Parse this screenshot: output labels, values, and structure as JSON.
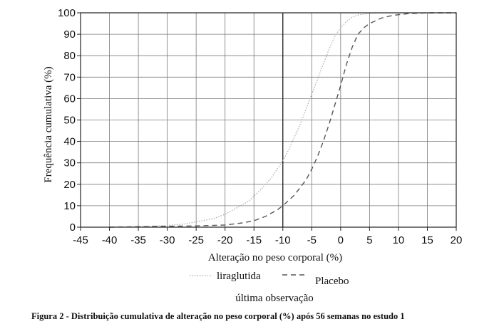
{
  "caption": "Figura 2 - Distribuição cumulativa de alteração no peso corporal (%) após 56 semanas no estudo 1",
  "chart_data": {
    "type": "line",
    "title": "",
    "xlabel": "Alteração no peso corporal (%)",
    "ylabel": "Frequência cumulativa (%)",
    "xlim": [
      -45,
      20
    ],
    "ylim": [
      0,
      100
    ],
    "x_ticks": [
      -45,
      -40,
      -35,
      -30,
      -25,
      -20,
      -15,
      -10,
      -5,
      0,
      5,
      10,
      15,
      20
    ],
    "y_ticks": [
      0,
      10,
      20,
      30,
      40,
      50,
      60,
      70,
      80,
      90,
      100
    ],
    "x_tick_labels": [
      "-45",
      "-40",
      "-35",
      "-30",
      "-25",
      "-20",
      "-15",
      "-10",
      "-5",
      "0",
      "5",
      "10",
      "15",
      "20"
    ],
    "y_tick_labels": [
      "0",
      "10",
      "20",
      "30",
      "40",
      "50",
      "60",
      "70",
      "80",
      "90",
      "100"
    ],
    "grid": true,
    "reference_line_x": -10,
    "legend_placement": "below",
    "legend_title": "última observação",
    "series": [
      {
        "name": "liraglutida",
        "style": "dotted",
        "color": "#a8a8a8",
        "x": [
          -40,
          -35,
          -30,
          -27,
          -25,
          -22,
          -20,
          -18,
          -16,
          -14,
          -12,
          -10,
          -9,
          -8,
          -7,
          -6,
          -5,
          -4,
          -3,
          -2,
          -1,
          0,
          1,
          2,
          3,
          5,
          8
        ],
        "y": [
          0,
          0.2,
          0.8,
          1.5,
          2.5,
          4,
          6,
          9,
          12,
          17,
          23,
          31,
          36,
          42,
          48,
          55,
          62,
          69,
          76,
          83,
          89,
          93,
          96,
          98,
          99,
          99.8,
          100
        ]
      },
      {
        "name": "Placebo",
        "style": "dashed",
        "color": "#555555",
        "x": [
          -40,
          -35,
          -30,
          -25,
          -20,
          -17,
          -15,
          -13,
          -11,
          -10,
          -8,
          -6,
          -5,
          -4,
          -3,
          -2,
          -1,
          0,
          1,
          2,
          3,
          4,
          5,
          7,
          9,
          12,
          15
        ],
        "y": [
          0,
          0.2,
          0.4,
          0.6,
          1,
          2,
          3,
          5,
          8,
          10,
          15,
          22,
          27,
          33,
          40,
          48,
          57,
          66,
          76,
          84,
          90,
          93,
          95,
          97.5,
          98.8,
          99.7,
          100
        ]
      }
    ]
  }
}
